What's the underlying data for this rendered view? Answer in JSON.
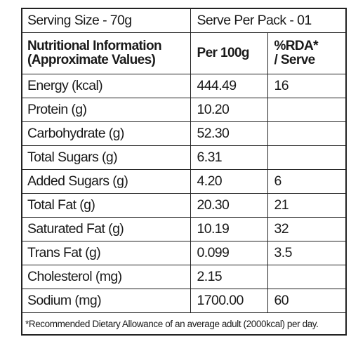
{
  "serving": {
    "size": "Serving Size - 70g",
    "per_pack": "Serve Per Pack - 01"
  },
  "header": {
    "nutrient": [
      "Nutritional Information",
      "(Approximate Values)"
    ],
    "per100g": "Per 100g",
    "rda": [
      "%RDA*",
      "/ Serve"
    ]
  },
  "table": {
    "rows": [
      [
        "Energy (kcal)",
        "444.49",
        "16"
      ],
      [
        "Protein (g)",
        "10.20",
        ""
      ],
      [
        "Carbohydrate (g)",
        "52.30",
        ""
      ],
      [
        "Total Sugars (g)",
        "6.31",
        ""
      ],
      [
        "Added Sugars (g)",
        "4.20",
        "6"
      ],
      [
        "Total Fat (g)",
        "20.30",
        "21"
      ],
      [
        "Saturated Fat (g)",
        "10.19",
        "32"
      ],
      [
        "Trans Fat (g)",
        "0.099",
        "3.5"
      ],
      [
        "Cholesterol (mg)",
        "2.15",
        ""
      ],
      [
        "Sodium (mg)",
        "1700.00",
        "60"
      ]
    ]
  },
  "footnote": "*Recommended Dietary Allowance of an average adult (2000kcal) per day."
}
